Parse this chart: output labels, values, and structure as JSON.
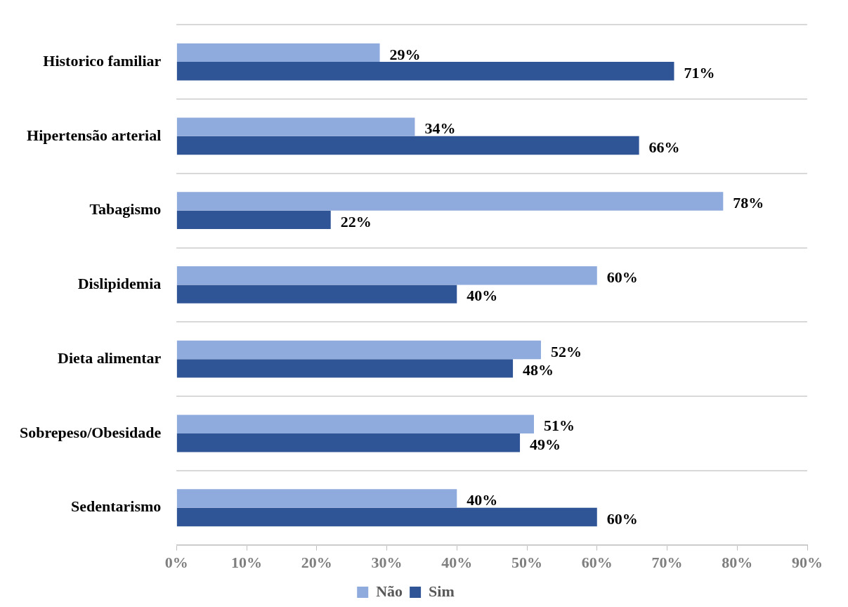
{
  "chart_data": {
    "type": "bar",
    "orientation": "horizontal",
    "categories": [
      "Historico familiar",
      "Hipertensão arterial",
      "Tabagismo",
      "Dislipidemia",
      "Dieta alimentar",
      "Sobrepeso/Obesidade",
      "Sedentarismo"
    ],
    "series": [
      {
        "name": "Não",
        "color": "#8faadc",
        "values": [
          29,
          34,
          78,
          60,
          52,
          51,
          40
        ],
        "value_labels": [
          "29%",
          "34%",
          "78%",
          "60%",
          "52%",
          "51%",
          "40%"
        ]
      },
      {
        "name": "Sim",
        "color": "#2f5597",
        "values": [
          71,
          66,
          22,
          40,
          48,
          49,
          60
        ],
        "value_labels": [
          "71%",
          "66%",
          "22%",
          "40%",
          "48%",
          "49%",
          "60%"
        ]
      }
    ],
    "xlim": [
      0,
      90
    ],
    "xticks": [
      {
        "value": 0,
        "label": "0%"
      },
      {
        "value": 10,
        "label": "10%"
      },
      {
        "value": 20,
        "label": "20%"
      },
      {
        "value": 30,
        "label": "30%"
      },
      {
        "value": 40,
        "label": "40%"
      },
      {
        "value": 50,
        "label": "50%"
      },
      {
        "value": 60,
        "label": "60%"
      },
      {
        "value": 70,
        "label": "70%"
      },
      {
        "value": 80,
        "label": "80%"
      },
      {
        "value": 90,
        "label": "90%"
      }
    ],
    "grid": "y",
    "legend": "bottom"
  }
}
